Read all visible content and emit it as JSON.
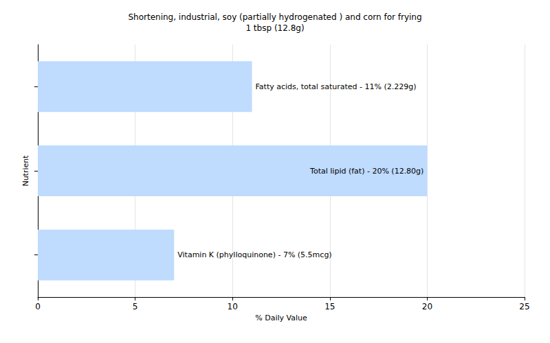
{
  "chart_data": {
    "type": "bar",
    "title": "Shortening, industrial, soy (partially hydrogenated ) and corn for frying",
    "subtitle": "1 tbsp (12.8g)",
    "orientation": "horizontal",
    "categories": [
      null,
      null,
      null
    ],
    "values": [
      11,
      20,
      7
    ],
    "value_labels": [
      "Fatty acids, total saturated - 11% (2.229g)",
      "Total lipid (fat) - 20% (12.80g)",
      "Vitamin K (phylloquinone) - 7% (5.5mcg)"
    ],
    "color": "#bfdbfe",
    "xlabel": "% Daily Value",
    "ylabel": "Nutrient",
    "xlim": [
      0,
      25
    ],
    "xticks": [
      0,
      5,
      10,
      15,
      20,
      25
    ],
    "grid": true,
    "data_labels": true,
    "tick_labels": "x"
  }
}
